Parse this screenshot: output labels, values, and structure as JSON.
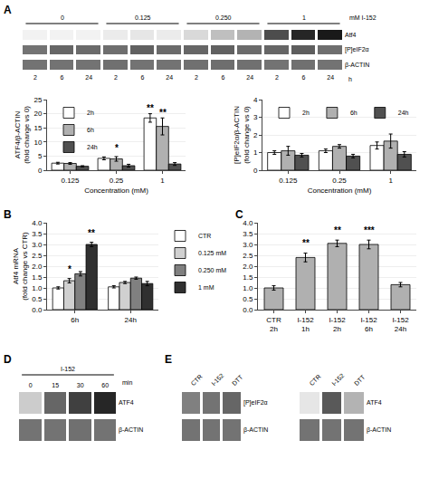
{
  "chart_data": [
    {
      "type": "blot",
      "panel": "A",
      "x": [
        "2",
        "6",
        "24",
        "2",
        "6",
        "24",
        "2",
        "6",
        "24",
        "2",
        "6",
        "24"
      ],
      "y": [
        "Atf4",
        "[P]eIF2α",
        "β-ACTIN"
      ],
      "values": [
        [
          0.05,
          0.05,
          0.05,
          0.08,
          0.1,
          0.08,
          0.15,
          0.25,
          0.3,
          0.7,
          0.85,
          0.9
        ],
        [
          0.55,
          0.6,
          0.58,
          0.57,
          0.62,
          0.58,
          0.6,
          0.62,
          0.58,
          0.6,
          0.63,
          0.57
        ],
        [
          0.55,
          0.55,
          0.55,
          0.56,
          0.55,
          0.55,
          0.56,
          0.57,
          0.56,
          0.55,
          0.56,
          0.55
        ]
      ],
      "zlim": [
        0,
        1
      ],
      "x_groups": [
        {
          "label": "0",
          "size": 3
        },
        {
          "label": "0.125",
          "size": 3
        },
        {
          "label": "0.250",
          "size": 3
        },
        {
          "label": "1",
          "size": 3
        }
      ],
      "x_groups_title": "mM I-152",
      "xlabel": "h"
    },
    {
      "type": "bar",
      "categories": [
        "0.125",
        "0.25",
        "1"
      ],
      "series": [
        {
          "name": "2h",
          "color": "#ffffff",
          "values": [
            2.5,
            4.2,
            18.5
          ],
          "errors": [
            0.3,
            0.5,
            1.5
          ]
        },
        {
          "name": "6h",
          "color": "#b0b0b0",
          "values": [
            2.4,
            4.0,
            15.5
          ],
          "errors": [
            0.3,
            0.8,
            3.0
          ]
        },
        {
          "name": "24h",
          "color": "#505050",
          "values": [
            1.4,
            1.6,
            2.2
          ],
          "errors": [
            0.2,
            0.5,
            0.5
          ]
        }
      ],
      "xlabel": "Concentration (mM)",
      "ylabel": "ATF4/β-ACTIN\n(fold change vs 0)",
      "ylim": [
        0,
        25
      ],
      "yticks": [
        0,
        5,
        10,
        15,
        20,
        25
      ],
      "grid": true,
      "legend": "upper left",
      "annotations": [
        {
          "text": "*",
          "category": "0.25",
          "series": "6h",
          "y": 5.5
        },
        {
          "text": "**",
          "category": "1",
          "series": "2h",
          "y": 19.5
        },
        {
          "text": "**",
          "category": "1",
          "series": "6h",
          "y": 18.0
        }
      ]
    },
    {
      "type": "bar",
      "categories": [
        "0.125",
        "0.25",
        "1"
      ],
      "series": [
        {
          "name": "2h",
          "color": "#ffffff",
          "values": [
            1.0,
            1.1,
            1.4
          ],
          "errors": [
            0.1,
            0.1,
            0.2
          ]
        },
        {
          "name": "6h",
          "color": "#b0b0b0",
          "values": [
            1.1,
            1.35,
            1.65
          ],
          "errors": [
            0.25,
            0.1,
            0.4
          ]
        },
        {
          "name": "24h",
          "color": "#505050",
          "values": [
            0.85,
            0.8,
            0.9
          ],
          "errors": [
            0.1,
            0.1,
            0.15
          ]
        }
      ],
      "xlabel": "Concentration (mM)",
      "ylabel": "[P]eIF2α/β-ACTIN\n(fold change vs 0)",
      "ylim": [
        0,
        4
      ],
      "yticks": [
        0,
        1,
        2,
        3,
        4
      ],
      "grid": true,
      "legend": "upper left"
    },
    {
      "type": "bar",
      "panel": "B",
      "categories": [
        "6h",
        "24h"
      ],
      "series": [
        {
          "name": "CTR",
          "color": "#ffffff",
          "values": [
            1.0,
            1.05
          ],
          "errors": [
            0.05,
            0.05
          ]
        },
        {
          "name": "0.125 mM",
          "color": "#d0d0d0",
          "values": [
            1.33,
            1.25
          ],
          "errors": [
            0.1,
            0.05
          ]
        },
        {
          "name": "0.250 mM",
          "color": "#808080",
          "values": [
            1.65,
            1.45
          ],
          "errors": [
            0.1,
            0.05
          ]
        },
        {
          "name": "1 mM",
          "color": "#303030",
          "values": [
            3.0,
            1.2
          ],
          "errors": [
            0.1,
            0.1
          ]
        }
      ],
      "ylabel": "Atf4 mRNA\n(fold change vs CTR)",
      "ylim": [
        0,
        4
      ],
      "yticks": [
        {
          "value": 0,
          "label": "0.0"
        },
        0.5,
        {
          "value": 1,
          "label": "1.0"
        },
        1.5,
        {
          "value": 2,
          "label": "2.0"
        },
        2.5,
        {
          "value": 3,
          "label": "3.0"
        },
        3.5,
        {
          "value": 4,
          "label": "4.0"
        }
      ],
      "grid": true,
      "legend": "right",
      "annotations": [
        {
          "text": "*",
          "category": "6h",
          "series": "0.125 mM",
          "y": 1.55
        },
        {
          "text": "**",
          "category": "6h",
          "series": "1 mM",
          "y": 3.2
        }
      ]
    },
    {
      "type": "bar",
      "panel": "C",
      "categories": [
        "CTR\n2h",
        "I-152\n1h",
        "I-152\n2h",
        "I-152\n6h",
        "I-152\n24h"
      ],
      "values": [
        1.0,
        2.4,
        3.05,
        3.0,
        1.15
      ],
      "errors": [
        0.1,
        0.2,
        0.15,
        0.2,
        0.1
      ],
      "color": "#b0b0b0",
      "ylim": [
        0,
        4
      ],
      "yticks": [
        {
          "value": 0,
          "label": "0.0"
        },
        0.5,
        {
          "value": 1,
          "label": "1.0"
        },
        1.5,
        {
          "value": 2,
          "label": "2.0"
        },
        2.5,
        {
          "value": 3,
          "label": "3.0"
        },
        3.5,
        {
          "value": 4,
          "label": "4.0"
        }
      ],
      "grid": true,
      "annotations": [
        {
          "text": "**",
          "category": "I-152\n1h",
          "y": 2.75
        },
        {
          "text": "**",
          "category": "I-152\n2h",
          "y": 3.35
        },
        {
          "text": "***",
          "category": "I-152\n6h",
          "y": 3.35
        }
      ]
    },
    {
      "type": "blot",
      "panel": "D",
      "x": [
        "0",
        "15",
        "30",
        "60"
      ],
      "y": [
        "ATF4",
        "β-ACTIN"
      ],
      "values": [
        [
          0.2,
          0.6,
          0.75,
          0.85
        ],
        [
          0.55,
          0.55,
          0.56,
          0.55
        ]
      ],
      "zlim": [
        0,
        1
      ],
      "x_groups": [
        {
          "label": "I-152",
          "size": 4
        }
      ],
      "xlabel": "min"
    },
    {
      "type": "blot",
      "panel": "E",
      "x": [
        "CTR",
        "I-152",
        "DTT"
      ],
      "y": [
        "[P]eIF2α",
        "β-ACTIN"
      ],
      "values": [
        [
          0.5,
          0.55,
          0.6
        ],
        [
          0.55,
          0.55,
          0.55
        ]
      ],
      "zlim": [
        0,
        1
      ]
    },
    {
      "type": "blot",
      "x": [
        "CTR",
        "I-152",
        "DTT"
      ],
      "y": [
        "ATF4",
        "β-ACTIN"
      ],
      "values": [
        [
          0.1,
          0.65,
          0.3
        ],
        [
          0.55,
          0.55,
          0.55
        ]
      ],
      "zlim": [
        0,
        1
      ]
    }
  ]
}
